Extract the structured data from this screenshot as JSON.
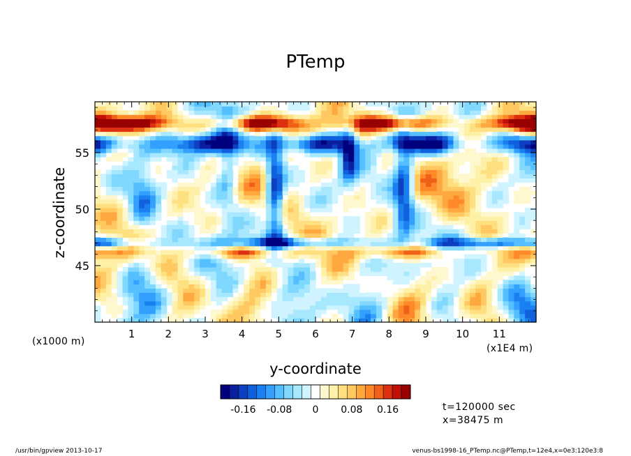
{
  "chart_data": {
    "type": "heatmap",
    "title": "PTemp",
    "xlabel": "y-coordinate",
    "ylabel": "z-coordinate",
    "x_unit_left": "(x1000 m)",
    "x_unit_right": "(x1E4 m)",
    "xlim": [
      0,
      12
    ],
    "ylim": [
      40,
      59.5
    ],
    "x_ticks": [
      "1",
      "2",
      "3",
      "4",
      "5",
      "6",
      "7",
      "8",
      "9",
      "10",
      "11"
    ],
    "y_ticks": [
      "45",
      "50",
      "55"
    ],
    "colorbar": {
      "range": [
        -0.2,
        0.2
      ],
      "step": 0.02,
      "tick_labels": [
        "-0.16",
        "-0.08",
        "0",
        "0.08",
        "0.16"
      ],
      "colors": [
        "#00007f",
        "#0a1fa0",
        "#0d3fc0",
        "#1060dd",
        "#1a80f0",
        "#33a0ff",
        "#55bfff",
        "#80d8ff",
        "#a8e8ff",
        "#cff4ff",
        "#ffffff",
        "#fff8cf",
        "#fff0a8",
        "#ffe080",
        "#ffc860",
        "#ffa840",
        "#ff8828",
        "#f06018",
        "#dd3010",
        "#c01008",
        "#990000"
      ]
    },
    "features": [
      {
        "type": "warm_band",
        "z": 57.5
      },
      {
        "type": "cold_band",
        "z": 55.5
      },
      {
        "type": "cold_band",
        "z": 47.0
      },
      {
        "type": "warm_band",
        "z": 46.3
      },
      {
        "type": "cold_column",
        "y": 4.9,
        "z_range": [
          47.5,
          56.0
        ]
      },
      {
        "type": "cold_column",
        "y": 8.4,
        "z_range": [
          48.0,
          56.0
        ]
      },
      {
        "type": "cold_column",
        "y": 6.9,
        "z_range": [
          52.5,
          57.0
        ]
      }
    ]
  },
  "info": {
    "time": "t=120000 sec",
    "position": "x=38475 m"
  },
  "footer": {
    "left": "/usr/bin/gpview   2013-10-17",
    "right": "venus-bs1998-16_PTemp.nc@PTemp,t=12e4,x=0e3:120e3:8"
  }
}
